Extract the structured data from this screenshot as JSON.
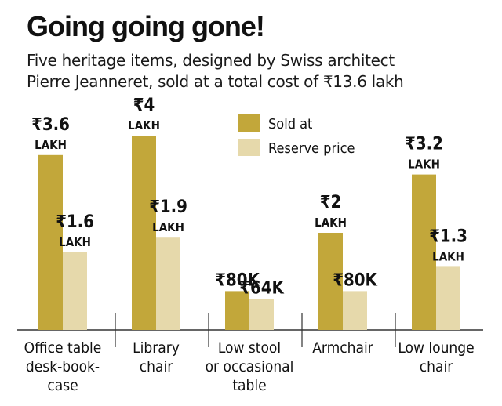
{
  "title": "Going going gone!",
  "subtitle": {
    "line1": "Five heritage items, designed by Swiss architect",
    "line2": "Pierre Jeanneret, sold at a total cost of ₹13.6 lakh"
  },
  "colors": {
    "sold": "#c2a73a",
    "reserve": "#e6d9ab",
    "axis": "#333333",
    "text": "#111111"
  },
  "chart_data": {
    "type": "bar",
    "title": "Going going gone!",
    "subtitle": "Five heritage items, designed by Swiss architect Pierre Jeanneret, sold at a total cost of ₹13.6 lakh",
    "unit": "₹ lakh",
    "ylim": [
      0,
      4
    ],
    "grid": false,
    "legend_position": "top-center",
    "categories": [
      [
        "Office table",
        "desk-book-",
        "case"
      ],
      [
        "Library",
        "chair"
      ],
      [
        "Low stool",
        "or occasional",
        "table"
      ],
      [
        "Armchair"
      ],
      [
        "Low lounge",
        "chair"
      ]
    ],
    "series": [
      {
        "name": "Sold at",
        "values": [
          3.6,
          4.0,
          0.8,
          2.0,
          3.2
        ],
        "labels": [
          [
            "₹3.6",
            "LAKH"
          ],
          [
            "₹4",
            "LAKH"
          ],
          [
            "₹80K"
          ],
          [
            "₹2",
            "LAKH"
          ],
          [
            "₹3.2",
            "LAKH"
          ]
        ]
      },
      {
        "name": "Reserve price",
        "values": [
          1.6,
          1.9,
          0.64,
          0.8,
          1.3
        ],
        "labels": [
          [
            "₹1.6",
            "LAKH"
          ],
          [
            "₹1.9",
            "LAKH"
          ],
          [
            "₹64K"
          ],
          [
            "₹80K"
          ],
          [
            "₹1.3",
            "LAKH"
          ]
        ]
      }
    ]
  }
}
